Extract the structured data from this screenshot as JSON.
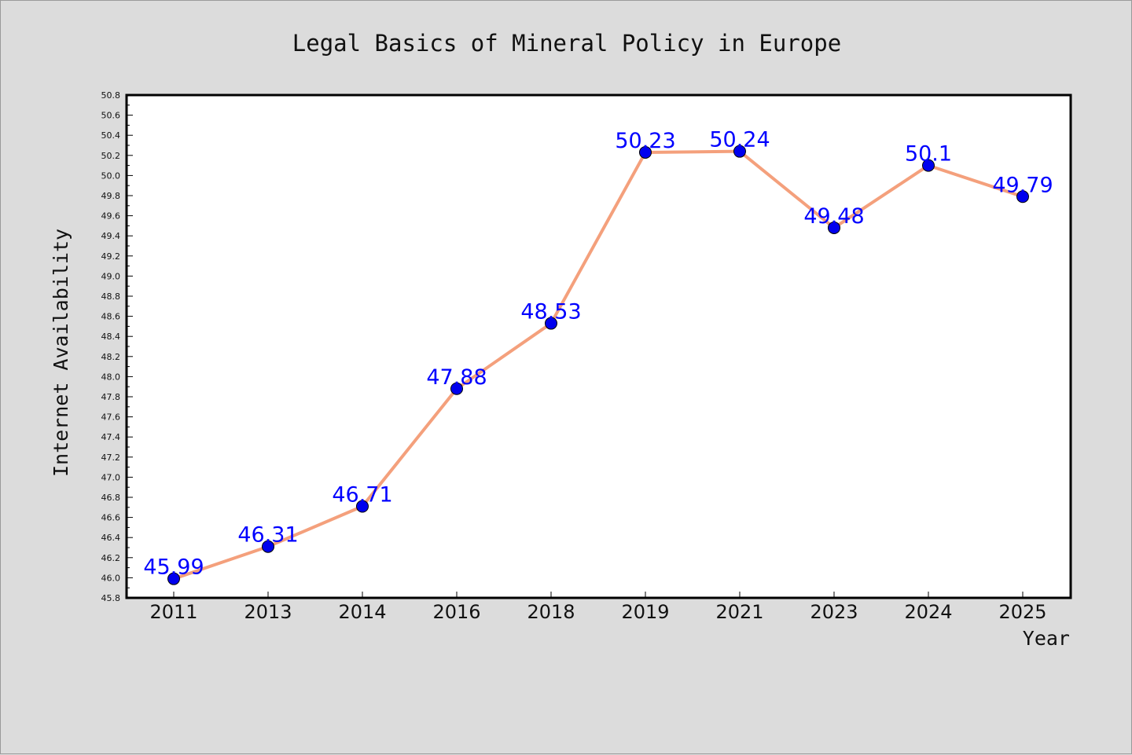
{
  "chart_data": {
    "type": "line",
    "title": "Legal Basics of Mineral Policy in Europe",
    "xlabel": "Year",
    "ylabel": "Internet Availability",
    "categories": [
      "2011",
      "2013",
      "2014",
      "2016",
      "2018",
      "2019",
      "2021",
      "2023",
      "2024",
      "2025"
    ],
    "values": [
      45.99,
      46.31,
      46.71,
      47.88,
      48.53,
      50.23,
      50.24,
      49.48,
      50.1,
      49.79
    ],
    "data_labels": [
      "45.99",
      "46.31",
      "46.71",
      "47.88",
      "48.53",
      "50.23",
      "50.24",
      "49.48",
      "50.1",
      "49.79"
    ],
    "ylim": [
      45.8,
      50.8
    ],
    "yticks": [
      "45.8",
      "46.0",
      "46.2",
      "46.4",
      "46.6",
      "46.8",
      "47.0",
      "47.2",
      "47.4",
      "47.6",
      "47.8",
      "48.0",
      "48.2",
      "48.4",
      "48.6",
      "48.8",
      "49.0",
      "49.2",
      "49.4",
      "49.6",
      "49.8",
      "50.0",
      "50.2",
      "50.4",
      "50.6",
      "50.8"
    ],
    "grid": false,
    "legend": "none",
    "line_color": "#f4a07c",
    "marker_color": "#0000ee",
    "label_color": "#0000ff",
    "background_color": "#dcdcdc",
    "plot_background": "#ffffff"
  }
}
